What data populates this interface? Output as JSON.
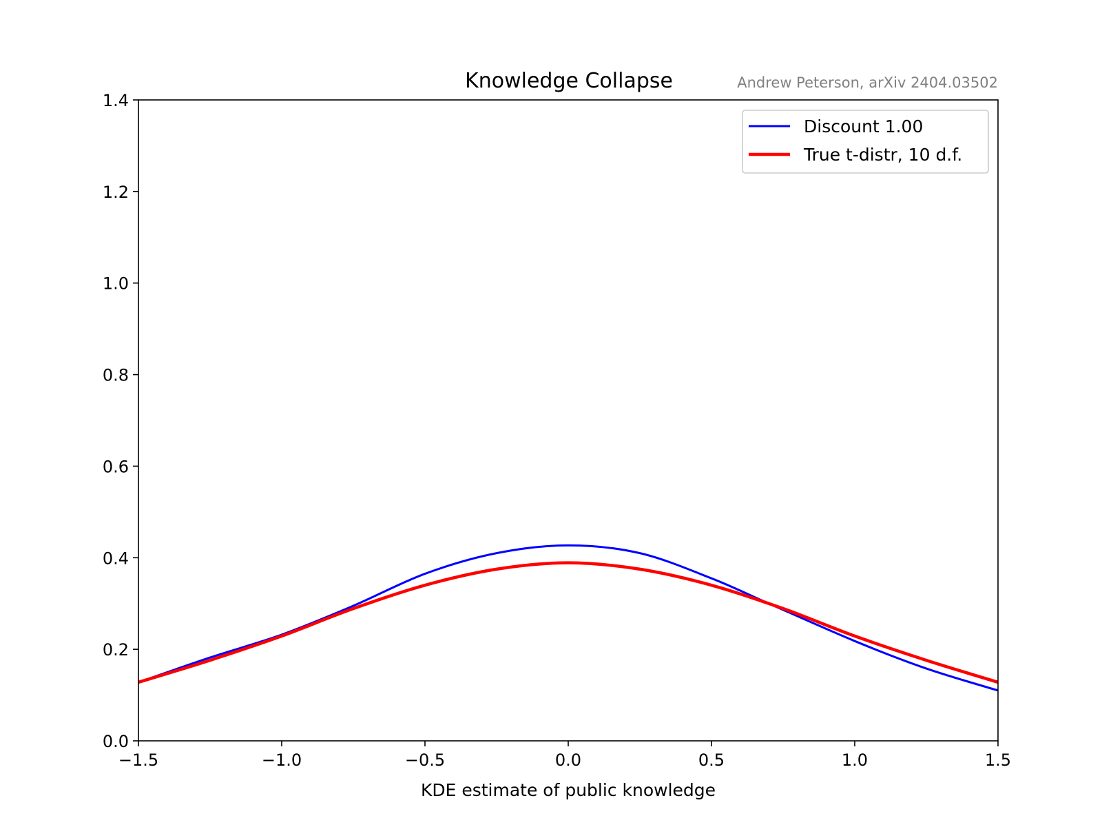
{
  "chart_data": {
    "type": "line",
    "title": "Knowledge Collapse",
    "subtitle": "Andrew Peterson, arXiv 2404.03502",
    "xlabel": "KDE estimate of public knowledge",
    "ylabel": "",
    "xlim": [
      -1.5,
      1.5
    ],
    "ylim": [
      0.0,
      1.4
    ],
    "x_ticks": [
      -1.5,
      -1.0,
      -0.5,
      0.0,
      0.5,
      1.0,
      1.5
    ],
    "x_tick_labels": [
      "−1.5",
      "−1.0",
      "−0.5",
      "0.0",
      "0.5",
      "1.0",
      "1.5"
    ],
    "y_ticks": [
      0.0,
      0.2,
      0.4,
      0.6,
      0.8,
      1.0,
      1.2,
      1.4
    ],
    "y_tick_labels": [
      "0.0",
      "0.2",
      "0.4",
      "0.6",
      "0.8",
      "1.0",
      "1.2",
      "1.4"
    ],
    "grid": false,
    "legend_position": "top-right",
    "series": [
      {
        "name": "Discount 1.00",
        "color": "#0000ff",
        "x": [
          -1.5,
          -1.25,
          -1.0,
          -0.75,
          -0.5,
          -0.25,
          0.0,
          0.25,
          0.5,
          0.7,
          1.0,
          1.25,
          1.5
        ],
        "y": [
          0.128,
          0.182,
          0.232,
          0.295,
          0.365,
          0.41,
          0.427,
          0.41,
          0.355,
          0.3,
          0.218,
          0.158,
          0.11
        ]
      },
      {
        "name": "True t-distr, 10 d.f.",
        "color": "#ff0000",
        "x": [
          -1.5,
          -1.25,
          -1.0,
          -0.75,
          -0.5,
          -0.25,
          0.0,
          0.25,
          0.5,
          0.75,
          1.0,
          1.25,
          1.5
        ],
        "y": [
          0.128,
          0.176,
          0.229,
          0.289,
          0.34,
          0.375,
          0.389,
          0.375,
          0.34,
          0.289,
          0.229,
          0.176,
          0.128
        ]
      }
    ]
  }
}
